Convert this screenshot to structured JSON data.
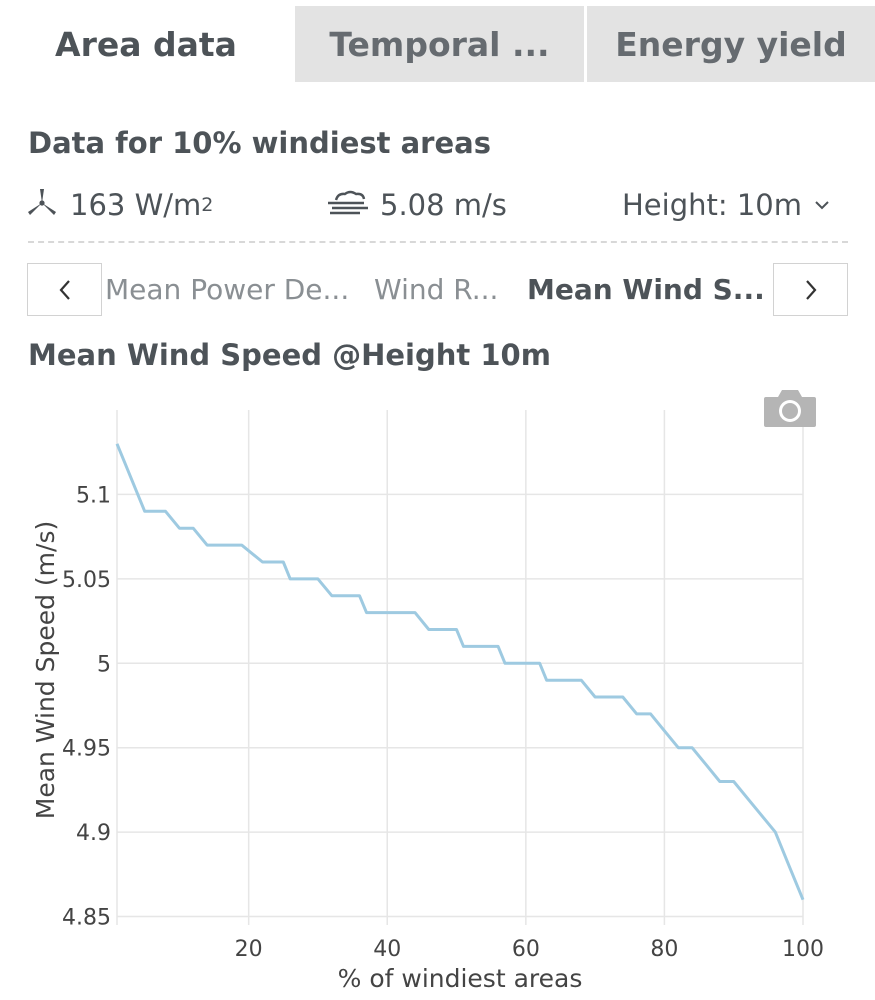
{
  "tabs": {
    "area_data": "Area data",
    "temporal": "Temporal ...",
    "energy_yield": "Energy yield"
  },
  "section": {
    "title": "Data for 10% windiest areas"
  },
  "stats": {
    "power_value": "163 W/m",
    "power_sup": "2",
    "speed_value": "5.08 m/s",
    "height_label": "Height: 10m"
  },
  "metrics": {
    "items": [
      "Mean Power De...",
      "Wind R...",
      "Mean Wind S..."
    ],
    "selected_index": 2
  },
  "chart_heading": "Mean Wind Speed @Height 10m",
  "colors": {
    "line": "#9ecae1",
    "grid": "#e6e6e6",
    "tab_inactive": "#e3e3e3"
  },
  "chart_data": {
    "type": "line",
    "xlabel": "% of windiest areas",
    "ylabel": "Mean Wind Speed (m/s)",
    "xlim": [
      1,
      100
    ],
    "ylim": [
      4.845,
      5.15
    ],
    "x_ticks": [
      20,
      40,
      60,
      80,
      100
    ],
    "y_ticks": [
      4.85,
      4.9,
      4.95,
      5,
      5.05,
      5.1
    ],
    "x_tick_labels": [
      "20",
      "40",
      "60",
      "80",
      "100"
    ],
    "y_tick_labels": [
      "4.85",
      "4.9",
      "4.95",
      "5",
      "5.05",
      "5.1"
    ],
    "grid": true,
    "series": [
      {
        "x": [
          1,
          5,
          8,
          10,
          12,
          14,
          16,
          18,
          19,
          22,
          25,
          26,
          29,
          30,
          32,
          33,
          36,
          37,
          38,
          40,
          44,
          46,
          48,
          50,
          51,
          54,
          56,
          57,
          60,
          62,
          63,
          66,
          68,
          70,
          72,
          74,
          76,
          77,
          78,
          80,
          82,
          84,
          86,
          88,
          90,
          92,
          94,
          96,
          98,
          100
        ],
        "y": [
          5.13,
          5.09,
          5.09,
          5.08,
          5.08,
          5.07,
          5.07,
          5.07,
          5.07,
          5.06,
          5.06,
          5.05,
          5.05,
          5.05,
          5.04,
          5.04,
          5.04,
          5.03,
          5.03,
          5.03,
          5.03,
          5.02,
          5.02,
          5.02,
          5.01,
          5.01,
          5.01,
          5.0,
          5.0,
          5.0,
          4.99,
          4.99,
          4.99,
          4.98,
          4.98,
          4.98,
          4.97,
          4.97,
          4.97,
          4.96,
          4.95,
          4.95,
          4.94,
          4.93,
          4.93,
          4.92,
          4.91,
          4.9,
          4.88,
          4.86
        ]
      }
    ]
  }
}
